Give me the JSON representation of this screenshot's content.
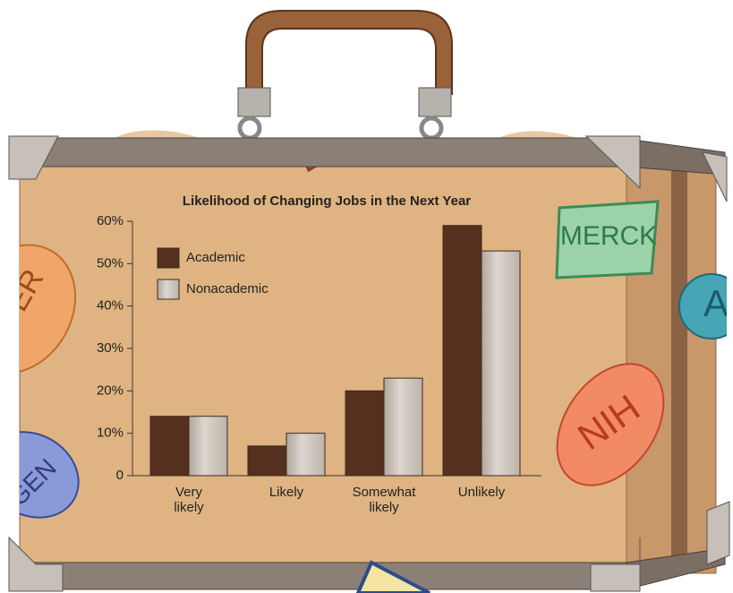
{
  "chart_data": {
    "type": "bar",
    "title": "Likelihood of Changing Jobs in the Next Year",
    "categories": [
      "Very likely",
      "Likely",
      "Somewhat likely",
      "Unlikely"
    ],
    "series": [
      {
        "name": "Academic",
        "color": "#55301f",
        "values": [
          14,
          7,
          20,
          59
        ]
      },
      {
        "name": "Nonacademic",
        "color": "#c9c1b9",
        "values": [
          14,
          10,
          23,
          53
        ]
      }
    ],
    "ylim": [
      0,
      60
    ],
    "yticks": [
      0,
      {
        "value": 10,
        "label": "10%"
      },
      {
        "value": 20,
        "label": "20%"
      },
      {
        "value": 30,
        "label": "30%"
      },
      {
        "value": 40,
        "label": "40%"
      },
      {
        "value": 50,
        "label": "50%"
      },
      {
        "value": 60,
        "label": "60%"
      }
    ]
  },
  "stickers": [
    "MERCK",
    "NIH",
    "A",
    "GEN",
    "ER"
  ]
}
